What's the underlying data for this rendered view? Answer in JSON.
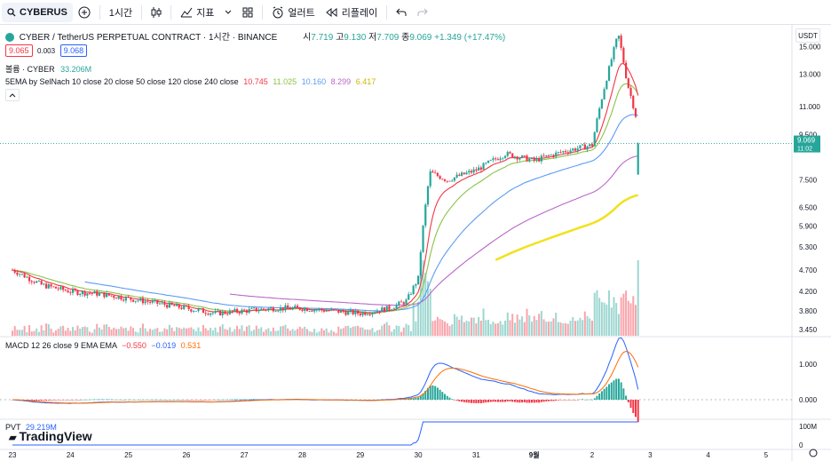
{
  "toolbar": {
    "symbol": "CYBERUS",
    "interval": "1시간",
    "indicators_label": "지표",
    "alert_label": "얼러트",
    "replay_label": "리플레이"
  },
  "header": {
    "title": "CYBER / TetherUS PERPETUAL CONTRACT · 1시간 · BINANCE",
    "ohlc": {
      "o_label": "시",
      "o": "7.719",
      "h_label": "고",
      "h": "9.130",
      "l_label": "저",
      "l": "7.709",
      "c_label": "종",
      "c": "9.069",
      "change": "+1.349 (+17.47%)"
    },
    "sell_price": "9.065",
    "spread": "0.003",
    "buy_price": "9.068"
  },
  "volume_legend": {
    "label": "볼륨 · CYBER",
    "value": "33.206M"
  },
  "ema_legend": {
    "label": "5EMA by SelNach 10 close 20 close 50 close 120 close 240 close",
    "values": [
      {
        "value": "10.745",
        "color": "#f23645"
      },
      {
        "value": "11.025",
        "color": "#8bc34a"
      },
      {
        "value": "10.160",
        "color": "#5b9cf6"
      },
      {
        "value": "8.299",
        "color": "#ba68c8"
      },
      {
        "value": "6.417",
        "color": "#f2e11b"
      }
    ]
  },
  "macd_legend": {
    "label": "MACD 12 26 close 9 EMA EMA",
    "values": [
      {
        "value": "−0.550",
        "color": "#f23645"
      },
      {
        "value": "−0.019",
        "color": "#2962ff"
      },
      {
        "value": "0.531",
        "color": "#ff6d00"
      }
    ]
  },
  "pvt_legend": {
    "label": "PVT",
    "value": "29.219M"
  },
  "currency": "USDT",
  "last_price_label": {
    "price": "9.069",
    "countdown": "11:02"
  },
  "watermark": "TradingView",
  "colors": {
    "up": "#26a69a",
    "down": "#f23645",
    "accent": "#2962ff"
  },
  "chart_data": [
    {
      "type": "candlestick",
      "title": "CYBER / TetherUS PERPETUAL CONTRACT · 1시간 · BINANCE",
      "x_ticks": [
        "23",
        "24",
        "25",
        "26",
        "27",
        "28",
        "29",
        "30",
        "31",
        "9월",
        "2",
        "3",
        "4",
        "5"
      ],
      "y_ticks": [
        "15.000",
        "13.000",
        "11.000",
        "9.500",
        "7.500",
        "6.500",
        "5.900",
        "5.300",
        "4.700",
        "4.200",
        "3.800",
        "3.450"
      ],
      "y_scale": "log",
      "ylim": [
        3.4,
        16.5
      ],
      "approx_close_path": [
        {
          "day": 23.0,
          "close": 4.7
        },
        {
          "day": 23.5,
          "close": 4.35
        },
        {
          "day": 24.0,
          "close": 4.2
        },
        {
          "day": 24.5,
          "close": 4.15
        },
        {
          "day": 25.0,
          "close": 4.05
        },
        {
          "day": 25.5,
          "close": 3.95
        },
        {
          "day": 26.0,
          "close": 3.85
        },
        {
          "day": 26.5,
          "close": 3.75
        },
        {
          "day": 27.0,
          "close": 3.8
        },
        {
          "day": 27.5,
          "close": 3.85
        },
        {
          "day": 28.0,
          "close": 3.85
        },
        {
          "day": 28.5,
          "close": 3.8
        },
        {
          "day": 29.0,
          "close": 3.75
        },
        {
          "day": 29.5,
          "close": 3.85
        },
        {
          "day": 29.8,
          "close": 4.0
        },
        {
          "day": 30.0,
          "close": 4.5
        },
        {
          "day": 30.2,
          "close": 7.8
        },
        {
          "day": 30.5,
          "close": 7.5
        },
        {
          "day": 31.0,
          "close": 7.9
        },
        {
          "day": 31.5,
          "close": 8.6
        },
        {
          "day": 32.0,
          "close": 8.3
        },
        {
          "day": 32.5,
          "close": 8.7
        },
        {
          "day": 33.0,
          "close": 9.0
        },
        {
          "day": 33.3,
          "close": 13.5
        },
        {
          "day": 33.45,
          "close": 16.0
        },
        {
          "day": 33.6,
          "close": 12.5
        },
        {
          "day": 33.75,
          "close": 10.5
        },
        {
          "day": 33.78,
          "close": 7.7
        },
        {
          "day": 33.8,
          "close": 9.069
        }
      ],
      "ema_values_last": {
        "ema10": 10.745,
        "ema20": 11.025,
        "ema50": 10.16,
        "ema120": 8.299,
        "ema240": 6.417
      }
    },
    {
      "type": "bar",
      "title": "MACD 12 26 close 9 EMA EMA",
      "y_ticks": [
        "1.000",
        "0.000"
      ],
      "last": {
        "histogram": -0.55,
        "macd": -0.019,
        "signal": 0.531
      }
    },
    {
      "type": "line",
      "title": "PVT",
      "y_ticks": [
        "100M",
        "0"
      ],
      "last": "29.219M"
    }
  ]
}
